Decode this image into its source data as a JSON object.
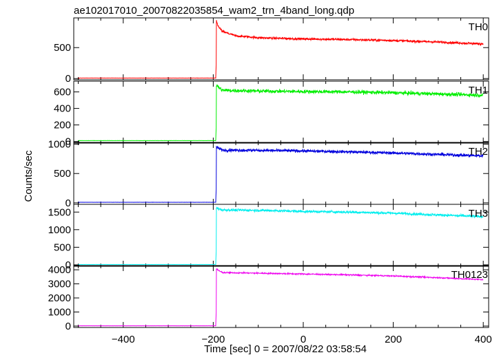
{
  "chart_data": {
    "type": "line",
    "title": "ae102017010_20070822035854_wam2_trn_4band_long.qdp",
    "xlabel": "Time [sec] 0 = 2007/08/22 03:58:54",
    "ylabel": "Counts/sec",
    "xlim": [
      -510,
      412
    ],
    "x_ticks": [
      -400,
      -200,
      0,
      200,
      400
    ],
    "x_tick_labels": [
      "−400",
      "−200",
      "0",
      "200",
      "400"
    ],
    "grid": false,
    "legend": "none",
    "panels": [
      {
        "name": "TH0",
        "color": "#ff0000",
        "ylim": [
          -20,
          980
        ],
        "y_ticks": [
          0,
          500
        ],
        "pre_level": 8,
        "onset": -193,
        "peak": 930,
        "plateau_start": 640,
        "plateau_end": 560,
        "noise": 18,
        "x": [
          -500,
          -300,
          -200,
          -193,
          -190,
          -180,
          -150,
          -100,
          0,
          100,
          200,
          300,
          400
        ],
        "values": [
          8,
          8,
          8,
          930,
          860,
          760,
          690,
          660,
          640,
          630,
          615,
          590,
          560
        ]
      },
      {
        "name": "TH1",
        "color": "#00ee00",
        "ylim": [
          -20,
          730
        ],
        "y_ticks": [
          0,
          200,
          400,
          600
        ],
        "pre_level": 10,
        "onset": -193,
        "peak": 680,
        "plateau_start": 615,
        "plateau_end": 560,
        "noise": 22,
        "x": [
          -500,
          -300,
          -200,
          -193,
          -180,
          -100,
          0,
          100,
          200,
          300,
          400
        ],
        "values": [
          10,
          10,
          10,
          680,
          620,
          610,
          605,
          600,
          590,
          575,
          560
        ]
      },
      {
        "name": "TH2",
        "color": "#0000dd",
        "ylim": [
          -25,
          1030
        ],
        "y_ticks": [
          0,
          500,
          1000
        ],
        "pre_level": 10,
        "onset": -193,
        "peak": 950,
        "plateau_start": 895,
        "plateau_end": 800,
        "noise": 25,
        "x": [
          -500,
          -300,
          -200,
          -193,
          -180,
          -100,
          0,
          100,
          200,
          300,
          400
        ],
        "values": [
          10,
          10,
          10,
          950,
          900,
          895,
          885,
          870,
          850,
          825,
          800
        ]
      },
      {
        "name": "TH3",
        "color": "#00eeee",
        "ylim": [
          -40,
          1720
        ],
        "y_ticks": [
          0,
          500,
          1000,
          1500
        ],
        "pre_level": 10,
        "onset": -193,
        "peak": 1620,
        "plateau_start": 1560,
        "plateau_end": 1370,
        "noise": 35,
        "x": [
          -500,
          -300,
          -200,
          -193,
          -180,
          -100,
          0,
          100,
          200,
          300,
          400
        ],
        "values": [
          10,
          10,
          10,
          1620,
          1560,
          1550,
          1520,
          1500,
          1470,
          1420,
          1370
        ]
      },
      {
        "name": "TH0123",
        "color": "#ee00ee",
        "ylim": [
          -100,
          4300
        ],
        "y_ticks": [
          0,
          1000,
          2000,
          3000,
          4000
        ],
        "pre_level": 20,
        "onset": -193,
        "peak": 4050,
        "plateau_start": 3780,
        "plateau_end": 3300,
        "noise": 45,
        "x": [
          -500,
          -300,
          -200,
          -193,
          -180,
          -100,
          0,
          100,
          200,
          300,
          400
        ],
        "values": [
          20,
          20,
          20,
          4050,
          3800,
          3760,
          3700,
          3640,
          3560,
          3440,
          3300
        ]
      }
    ]
  }
}
